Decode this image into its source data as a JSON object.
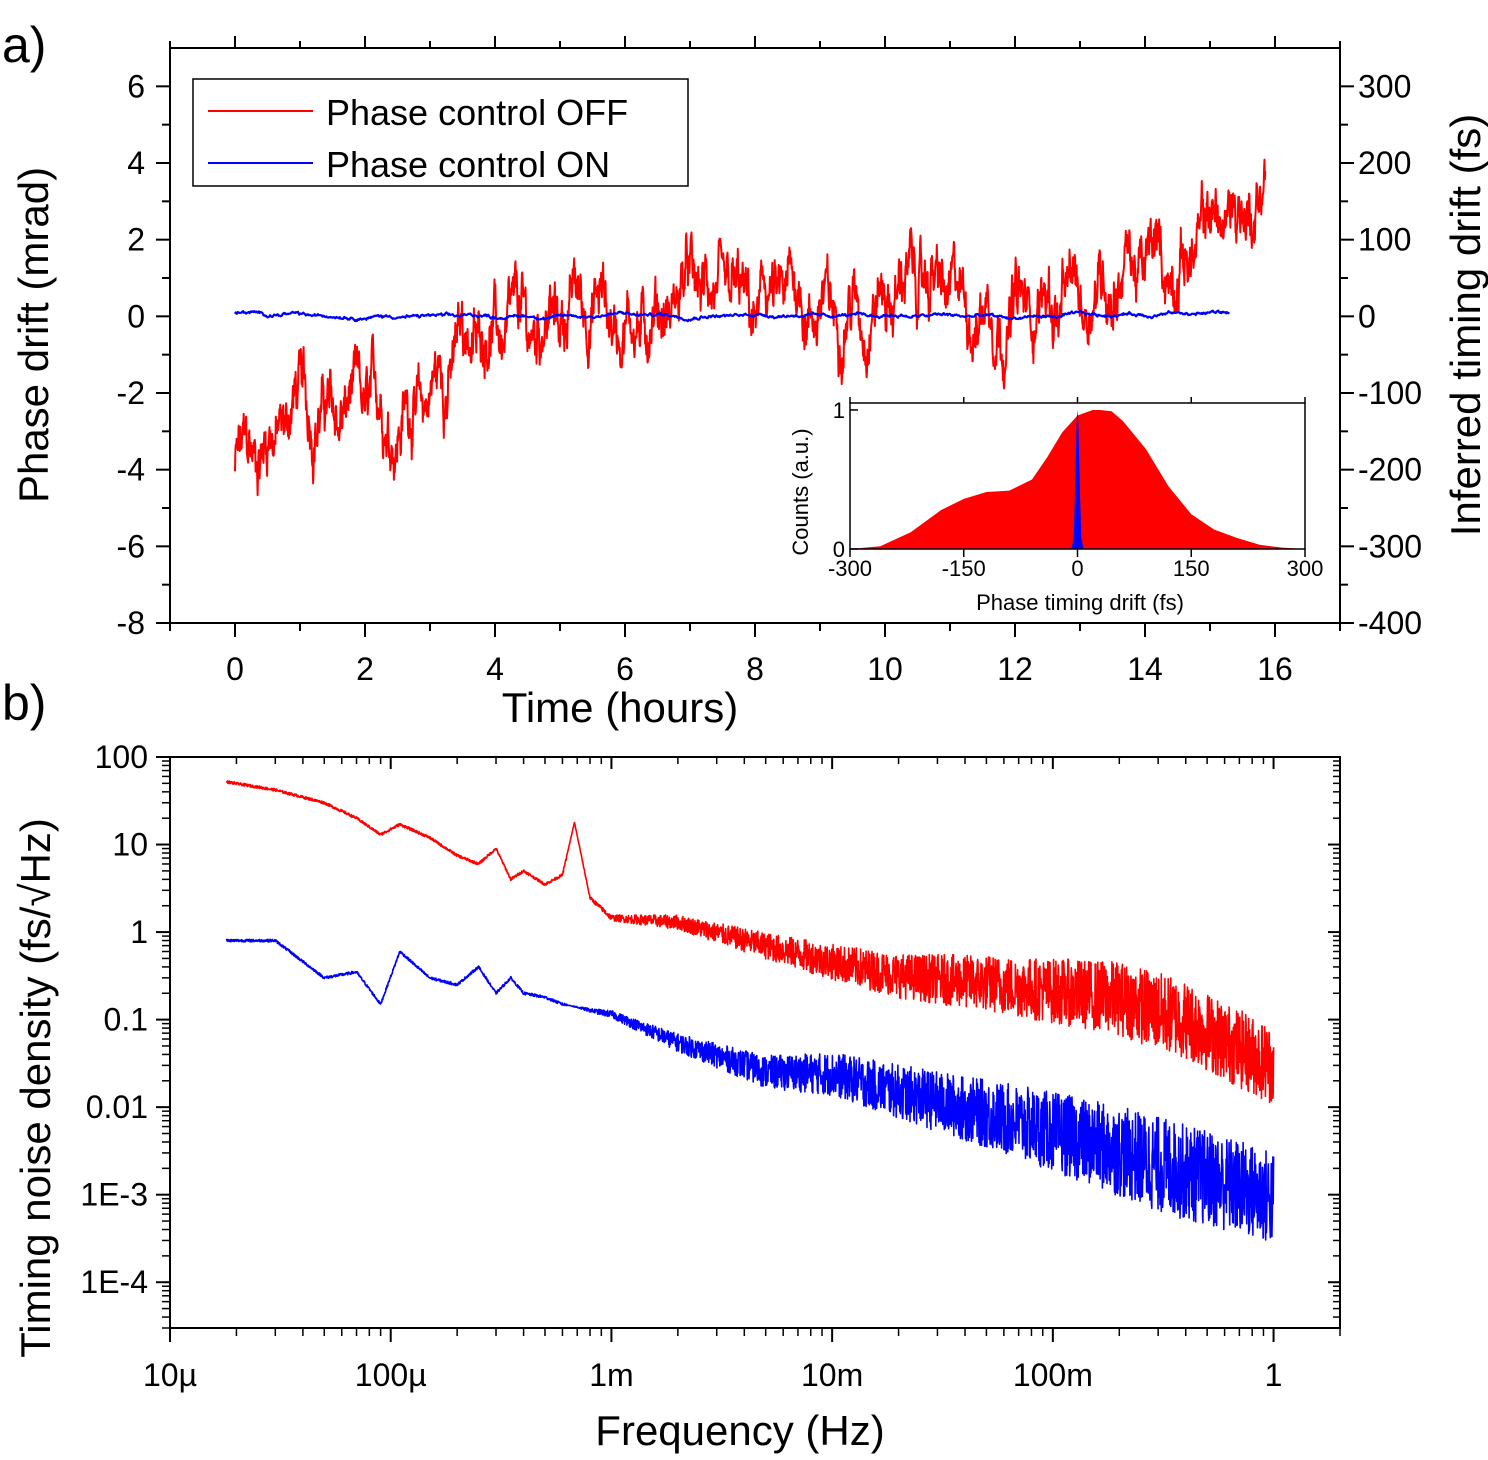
{
  "chart_data": [
    {
      "panel_label": "a)",
      "type": "line",
      "xlabel": "Time (hours)",
      "ylabel": "Phase drift (mrad)",
      "y2label": "Inferred timing drift (fs)",
      "xlim": [
        -1,
        17
      ],
      "ylim": [
        -8,
        7
      ],
      "y2lim": [
        -400,
        350
      ],
      "xticks": [
        0,
        2,
        4,
        6,
        8,
        10,
        12,
        14,
        16
      ],
      "yticks": [
        -8,
        -6,
        -4,
        -2,
        0,
        2,
        4,
        6
      ],
      "y2ticks": [
        -400,
        -300,
        -200,
        -100,
        0,
        100,
        200,
        300
      ],
      "legend_position": "top-left",
      "series": [
        {
          "name": "Phase control OFF",
          "color": "#ff0000",
          "x": [
            0,
            0.5,
            1,
            1.5,
            2,
            2.5,
            3,
            3.5,
            4,
            4.5,
            5,
            5.5,
            6,
            6.5,
            7,
            7.5,
            8,
            8.5,
            9,
            9.5,
            10,
            10.5,
            11,
            11.5,
            12,
            12.5,
            13,
            13.5,
            14,
            14.5,
            15,
            15.5,
            15.85
          ],
          "y": [
            -4.0,
            -3.5,
            -2.0,
            -2.5,
            -2.6,
            -2.7,
            -1.8,
            -0.8,
            -0.5,
            -0.2,
            0.1,
            0.2,
            0.0,
            0.3,
            0.6,
            0.3,
            0.3,
            0.5,
            0.0,
            0.5,
            0.6,
            0.8,
            0.7,
            0.4,
            -0.2,
            0.4,
            0.6,
            1.0,
            1.2,
            1.6,
            2.4,
            2.5,
            3.5
          ],
          "noise_amplitude": 1.5
        },
        {
          "name": "Phase control ON",
          "color": "#0000ff",
          "x": [
            0,
            1,
            2,
            3,
            4,
            5,
            6,
            7,
            8,
            9,
            10,
            11,
            12,
            13,
            14,
            15,
            15.3
          ],
          "y": [
            0.08,
            0.02,
            0.0,
            0.0,
            0.0,
            0.0,
            0.05,
            0.0,
            0.05,
            0.0,
            0.02,
            0.03,
            -0.05,
            0.05,
            0.05,
            0.08,
            0.1
          ],
          "noise_amplitude": 0.08
        }
      ],
      "inset": {
        "type": "area",
        "xlabel": "Phase timing drift (fs)",
        "ylabel": "Counts (a.u.)",
        "xlim": [
          -300,
          300
        ],
        "ylim": [
          0,
          1.05
        ],
        "xticks": [
          -300,
          -150,
          0,
          150,
          300
        ],
        "yticks": [
          0,
          1
        ],
        "series": [
          {
            "name": "Phase control OFF",
            "color": "#ff0000",
            "x": [
              -300,
              -260,
              -220,
              -180,
              -150,
              -120,
              -90,
              -60,
              -40,
              -20,
              0,
              20,
              30,
              45,
              60,
              90,
              120,
              150,
              180,
              210,
              240,
              270,
              300
            ],
            "y": [
              0.0,
              0.02,
              0.12,
              0.28,
              0.36,
              0.41,
              0.42,
              0.5,
              0.66,
              0.84,
              0.96,
              1.0,
              1.0,
              0.99,
              0.92,
              0.72,
              0.45,
              0.25,
              0.14,
              0.08,
              0.03,
              0.01,
              0.0
            ]
          },
          {
            "name": "Phase control ON",
            "color": "#0000ff",
            "x": [
              -8,
              -5,
              -3,
              -1,
              0,
              1,
              3,
              5,
              8
            ],
            "y": [
              0.0,
              0.08,
              0.45,
              0.92,
              1.0,
              0.92,
              0.45,
              0.08,
              0.0
            ]
          }
        ]
      }
    },
    {
      "panel_label": "b)",
      "type": "line",
      "xscale": "log",
      "yscale": "log",
      "xlabel": "Frequency (Hz)",
      "ylabel": "Timing noise density (fs/√Hz)",
      "xlim": [
        1e-05,
        2
      ],
      "ylim": [
        3e-05,
        100
      ],
      "xtick_values": [
        1e-05,
        0.0001,
        0.001,
        0.01,
        0.1,
        1
      ],
      "xtick_labels": [
        "10µ",
        "100µ",
        "1m",
        "10m",
        "100m",
        "1"
      ],
      "ytick_values": [
        100,
        10,
        1,
        0.1,
        0.01,
        0.001,
        0.0001
      ],
      "ytick_labels": [
        "100",
        "10",
        "1",
        "0.1",
        "0.01",
        "1E-3",
        "1E-4"
      ],
      "series": [
        {
          "name": "Phase control OFF",
          "color": "#ff0000",
          "x": [
            1.8e-05,
            3e-05,
            5e-05,
            7e-05,
            9e-05,
            0.00011,
            0.00015,
            0.0002,
            0.00025,
            0.0003,
            0.00035,
            0.0004,
            0.0005,
            0.0006,
            0.00068,
            0.0008,
            0.001,
            0.002,
            0.005,
            0.01,
            0.02,
            0.05,
            0.1,
            0.2,
            0.4,
            0.7,
            1.0
          ],
          "y": [
            52,
            42,
            30,
            20,
            13,
            17,
            12,
            7.5,
            6,
            9,
            4,
            5,
            3.5,
            4.5,
            18,
            2.5,
            1.5,
            1.4,
            0.8,
            0.55,
            0.4,
            0.35,
            0.3,
            0.26,
            0.15,
            0.07,
            0.045
          ],
          "noise_amplitude_decades": 0.45
        },
        {
          "name": "Phase control ON",
          "color": "#0000ff",
          "x": [
            1.8e-05,
            3e-05,
            5e-05,
            7e-05,
            9e-05,
            0.00011,
            0.00015,
            0.0002,
            0.00025,
            0.0003,
            0.00035,
            0.0004,
            0.0005,
            0.0006,
            0.0007,
            0.0008,
            0.001,
            0.002,
            0.005,
            0.01,
            0.02,
            0.05,
            0.1,
            0.2,
            0.4,
            0.7,
            1.0
          ],
          "y": [
            0.8,
            0.8,
            0.3,
            0.35,
            0.15,
            0.6,
            0.3,
            0.25,
            0.4,
            0.2,
            0.3,
            0.2,
            0.18,
            0.15,
            0.14,
            0.13,
            0.12,
            0.06,
            0.03,
            0.03,
            0.02,
            0.012,
            0.008,
            0.005,
            0.003,
            0.002,
            0.0015
          ],
          "noise_amplitude_decades": 0.55
        }
      ]
    }
  ]
}
